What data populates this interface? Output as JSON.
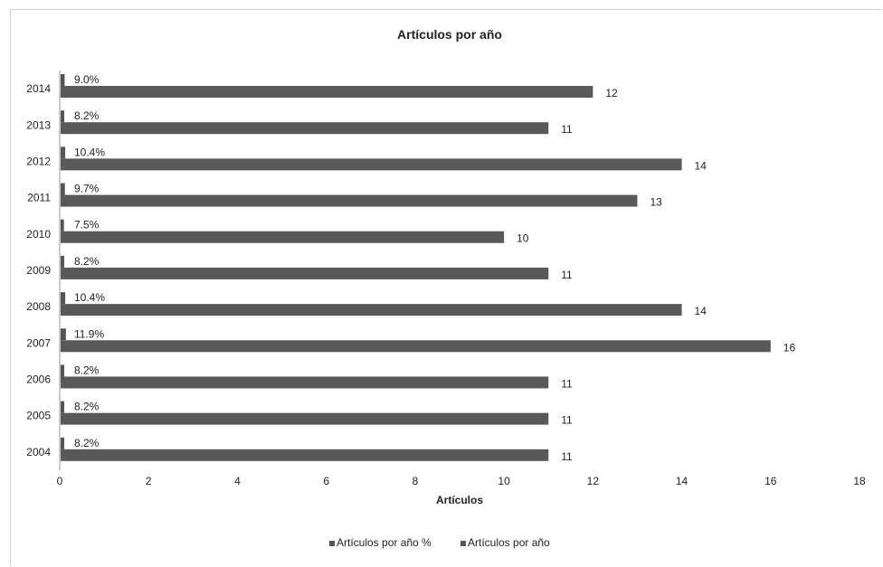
{
  "chart_data": {
    "type": "bar",
    "orientation": "horizontal",
    "title": "Artículos por año",
    "xlabel": "Artículos",
    "ylabel": "",
    "xlim": [
      0,
      18
    ],
    "xticks": [
      0,
      2,
      4,
      6,
      8,
      10,
      12,
      14,
      16,
      18
    ],
    "grid": false,
    "legend_position": "bottom",
    "categories": [
      "2014",
      "2013",
      "2012",
      "2011",
      "2010",
      "2009",
      "2008",
      "2007",
      "2006",
      "2005",
      "2004"
    ],
    "series": [
      {
        "name": "Artículos por año %",
        "color": "#555555",
        "values": [
          0.09,
          0.082,
          0.104,
          0.097,
          0.075,
          0.082,
          0.104,
          0.119,
          0.082,
          0.082,
          0.082
        ],
        "labels": [
          "9.0%",
          "8.2%",
          "10.4%",
          "9.7%",
          "7.5%",
          "8.2%",
          "10.4%",
          "11.9%",
          "8.2%",
          "8.2%",
          "8.2%"
        ]
      },
      {
        "name": "Artículos por año",
        "color": "#595959",
        "values": [
          12,
          11,
          14,
          13,
          10,
          11,
          14,
          16,
          11,
          11,
          11
        ],
        "labels": [
          "12",
          "11",
          "14",
          "13",
          "10",
          "11",
          "14",
          "16",
          "11",
          "11",
          "11"
        ]
      }
    ]
  }
}
